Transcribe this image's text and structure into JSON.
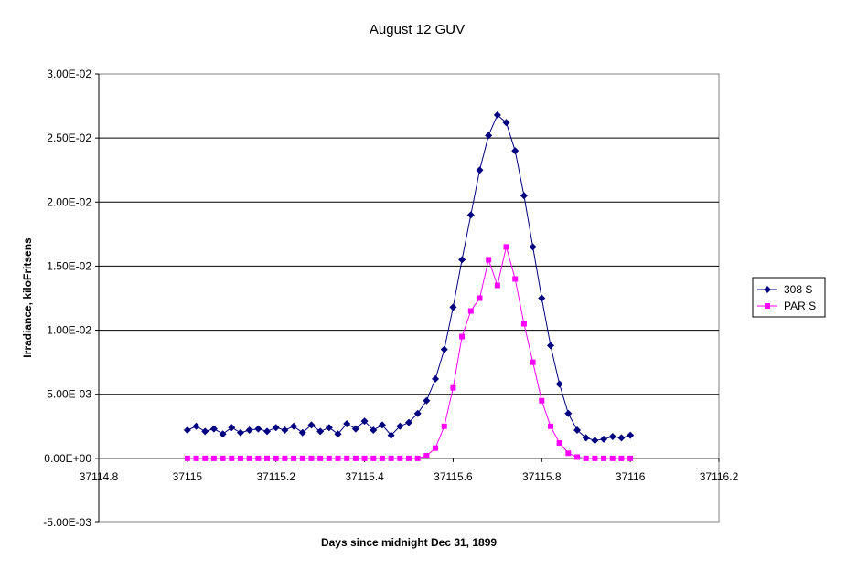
{
  "chart_data": {
    "type": "scatter",
    "title": "August 12 GUV",
    "xlabel": "Days since midnight Dec 31, 1899",
    "ylabel": "Irradiance, kiloFritsens",
    "xlim": [
      37114.8,
      37116.2
    ],
    "ylim": [
      -0.005,
      0.03
    ],
    "x_ticks": [
      "37114.8",
      "37115",
      "37115.2",
      "37115.4",
      "37115.6",
      "37115.8",
      "37116",
      "37116.2"
    ],
    "y_ticks": [
      "-5.00E-03",
      "0.00E+00",
      "5.00E-03",
      "1.00E-02",
      "1.50E-02",
      "2.00E-02",
      "2.50E-02",
      "3.00E-02"
    ],
    "grid": "horizontal major gridlines",
    "legend": "right",
    "series": [
      {
        "name": "308 S",
        "color": "#000080",
        "marker": "diamond",
        "x": [
          37115.0,
          37115.02,
          37115.04,
          37115.06,
          37115.08,
          37115.1,
          37115.12,
          37115.14,
          37115.16,
          37115.18,
          37115.2,
          37115.22,
          37115.24,
          37115.26,
          37115.28,
          37115.3,
          37115.32,
          37115.34,
          37115.36,
          37115.38,
          37115.4,
          37115.42,
          37115.44,
          37115.46,
          37115.48,
          37115.5,
          37115.52,
          37115.54,
          37115.56,
          37115.58,
          37115.6,
          37115.62,
          37115.64,
          37115.66,
          37115.68,
          37115.7,
          37115.72,
          37115.74,
          37115.76,
          37115.78,
          37115.8,
          37115.82,
          37115.84,
          37115.86,
          37115.88,
          37115.9,
          37115.92,
          37115.94,
          37115.96,
          37115.98,
          37116.0
        ],
        "y": [
          0.0022,
          0.0025,
          0.0021,
          0.0023,
          0.0019,
          0.0024,
          0.002,
          0.0022,
          0.0023,
          0.0021,
          0.0024,
          0.0022,
          0.0025,
          0.002,
          0.0026,
          0.0021,
          0.0024,
          0.0019,
          0.0027,
          0.0023,
          0.0029,
          0.0022,
          0.0026,
          0.0018,
          0.0025,
          0.0028,
          0.0035,
          0.0045,
          0.0062,
          0.0085,
          0.0118,
          0.0155,
          0.019,
          0.0225,
          0.0252,
          0.0268,
          0.0262,
          0.024,
          0.0205,
          0.0165,
          0.0125,
          0.0088,
          0.0058,
          0.0035,
          0.0022,
          0.0016,
          0.0014,
          0.0015,
          0.0017,
          0.0016,
          0.0018
        ]
      },
      {
        "name": "PAR S",
        "color": "#FF00FF",
        "marker": "square",
        "x": [
          37115.0,
          37115.02,
          37115.04,
          37115.06,
          37115.08,
          37115.1,
          37115.12,
          37115.14,
          37115.16,
          37115.18,
          37115.2,
          37115.22,
          37115.24,
          37115.26,
          37115.28,
          37115.3,
          37115.32,
          37115.34,
          37115.36,
          37115.38,
          37115.4,
          37115.42,
          37115.44,
          37115.46,
          37115.48,
          37115.5,
          37115.52,
          37115.54,
          37115.56,
          37115.58,
          37115.6,
          37115.62,
          37115.64,
          37115.66,
          37115.68,
          37115.7,
          37115.72,
          37115.74,
          37115.76,
          37115.78,
          37115.8,
          37115.82,
          37115.84,
          37115.86,
          37115.88,
          37115.9,
          37115.92,
          37115.94,
          37115.96,
          37115.98,
          37116.0
        ],
        "y": [
          0.0,
          0.0,
          0.0,
          0.0,
          0.0,
          0.0,
          0.0,
          0.0,
          0.0,
          0.0,
          0.0,
          0.0,
          0.0,
          0.0,
          0.0,
          0.0,
          0.0,
          0.0,
          0.0,
          0.0,
          0.0,
          0.0,
          0.0,
          0.0,
          0.0,
          0.0,
          0.0,
          0.0002,
          0.0008,
          0.0025,
          0.0055,
          0.0095,
          0.0115,
          0.0125,
          0.0155,
          0.0135,
          0.0165,
          0.014,
          0.0105,
          0.0075,
          0.0045,
          0.0025,
          0.0012,
          0.0004,
          0.0001,
          0.0,
          0.0,
          0.0,
          0.0,
          0.0,
          0.0
        ]
      }
    ]
  }
}
